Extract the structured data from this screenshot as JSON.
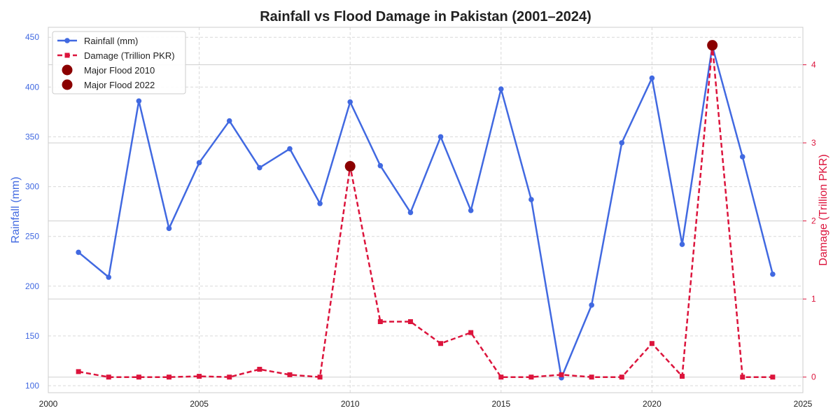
{
  "chart_data": {
    "type": "line",
    "title": "Rainfall vs Flood Damage in Pakistan (2001–2024)",
    "xlabel": "",
    "ylabel_left": "Rainfall (mm)",
    "ylabel_right": "Damage (Trillion PKR)",
    "x": [
      2001,
      2002,
      2003,
      2004,
      2005,
      2006,
      2007,
      2008,
      2009,
      2010,
      2011,
      2012,
      2013,
      2014,
      2015,
      2016,
      2017,
      2018,
      2019,
      2020,
      2021,
      2022,
      2023,
      2024
    ],
    "xlim": [
      2000,
      2025
    ],
    "ylim_left": [
      93,
      460
    ],
    "ylim_right": [
      -0.2,
      4.48
    ],
    "x_ticks": [
      "2000",
      "2005",
      "2010",
      "2015",
      "2020",
      "2025"
    ],
    "x_tick_values": [
      2000,
      2005,
      2010,
      2015,
      2020,
      2025
    ],
    "y_left_ticks": [
      "100",
      "150",
      "200",
      "250",
      "300",
      "350",
      "400",
      "450"
    ],
    "y_left_tick_values": [
      100,
      150,
      200,
      250,
      300,
      350,
      400,
      450
    ],
    "y_right_ticks": [
      "0",
      "1",
      "2",
      "3",
      "4"
    ],
    "y_right_tick_values": [
      0,
      1,
      2,
      3,
      4
    ],
    "grid": true,
    "legend_position": "top-left",
    "colors": {
      "rainfall": "#4169E1",
      "damage": "#DC143C",
      "major_flood": "#8B0000",
      "grid": "#d9d9d9",
      "axis": "#cccccc"
    },
    "series": [
      {
        "name": "Rainfall (mm)",
        "axis": "left",
        "style": "solid-circle",
        "values": [
          234,
          209,
          386,
          258,
          324,
          366,
          319,
          338,
          283,
          385,
          321,
          274,
          350,
          276,
          398,
          287,
          108,
          181,
          344,
          409,
          242,
          441,
          330,
          212
        ]
      },
      {
        "name": "Damage (Trillion PKR)",
        "axis": "right",
        "style": "dashed-square",
        "values": [
          0.07,
          0.0,
          0.0,
          0.0,
          0.01,
          0.0,
          0.1,
          0.03,
          0.0,
          2.7,
          0.71,
          0.71,
          0.43,
          0.57,
          0.0,
          0.0,
          0.03,
          0.0,
          0.0,
          0.43,
          0.01,
          4.25,
          0.0,
          0.0
        ]
      }
    ],
    "annotations": [
      {
        "name": "Major Flood 2010",
        "x": 2010,
        "y": 2.7,
        "axis": "right"
      },
      {
        "name": "Major Flood 2022",
        "x": 2022,
        "y": 4.25,
        "axis": "right"
      }
    ]
  }
}
